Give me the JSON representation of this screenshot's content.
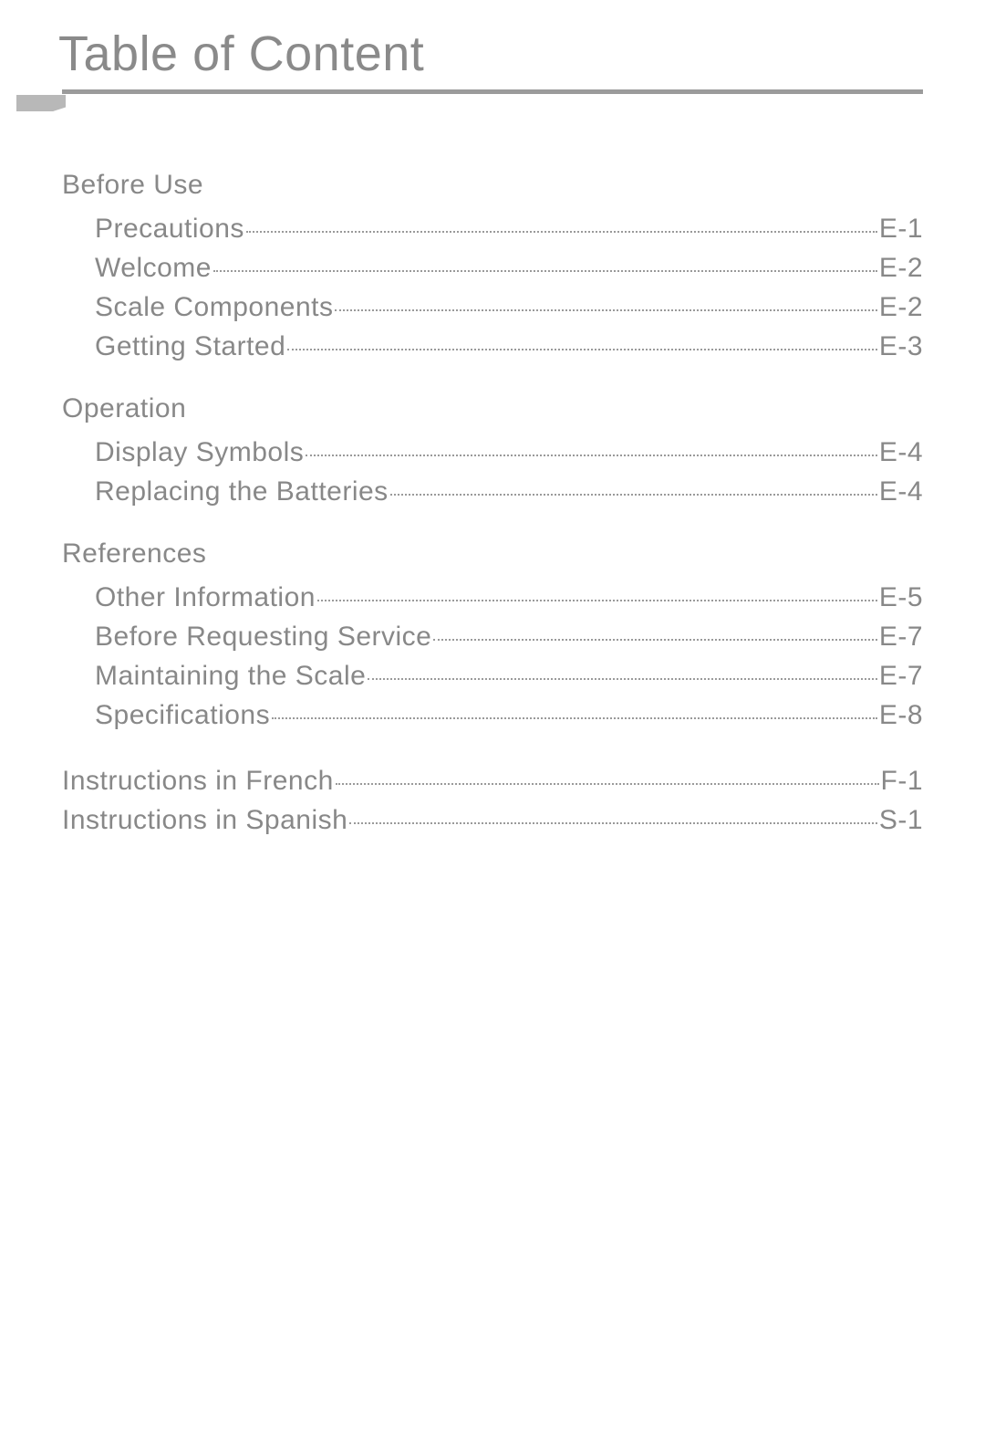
{
  "title": "Table of Content",
  "colors": {
    "text": "#888888",
    "rule": "#9b9b9b",
    "ruleTail": "#b8b8b8",
    "dots": "#9a9a9a",
    "background": "#ffffff"
  },
  "typography": {
    "titleFontSize": 54,
    "bodyFontSize": 30,
    "fontWeight": 200,
    "fontFamily": "Helvetica Neue"
  },
  "sections": [
    {
      "heading": "Before Use",
      "items": [
        {
          "label": "Precautions",
          "page": "E-1"
        },
        {
          "label": "Welcome",
          "page": "E-2"
        },
        {
          "label": "Scale Components",
          "page": "E-2"
        },
        {
          "label": "Getting Started",
          "page": "E-3"
        }
      ]
    },
    {
      "heading": "Operation",
      "items": [
        {
          "label": "Display Symbols",
          "page": "E-4"
        },
        {
          "label": "Replacing the Batteries",
          "page": "E-4"
        }
      ]
    },
    {
      "heading": "References",
      "items": [
        {
          "label": "Other Information",
          "page": "E-5"
        },
        {
          "label": "Before Requesting Service",
          "page": "E-7"
        },
        {
          "label": "Maintaining the Scale",
          "page": "E-7"
        },
        {
          "label": "Specifications",
          "page": "E-8"
        }
      ]
    }
  ],
  "languageLinks": [
    {
      "label": "Instructions in French",
      "page": "F-1"
    },
    {
      "label": "Instructions in Spanish",
      "page": "S-1"
    }
  ]
}
